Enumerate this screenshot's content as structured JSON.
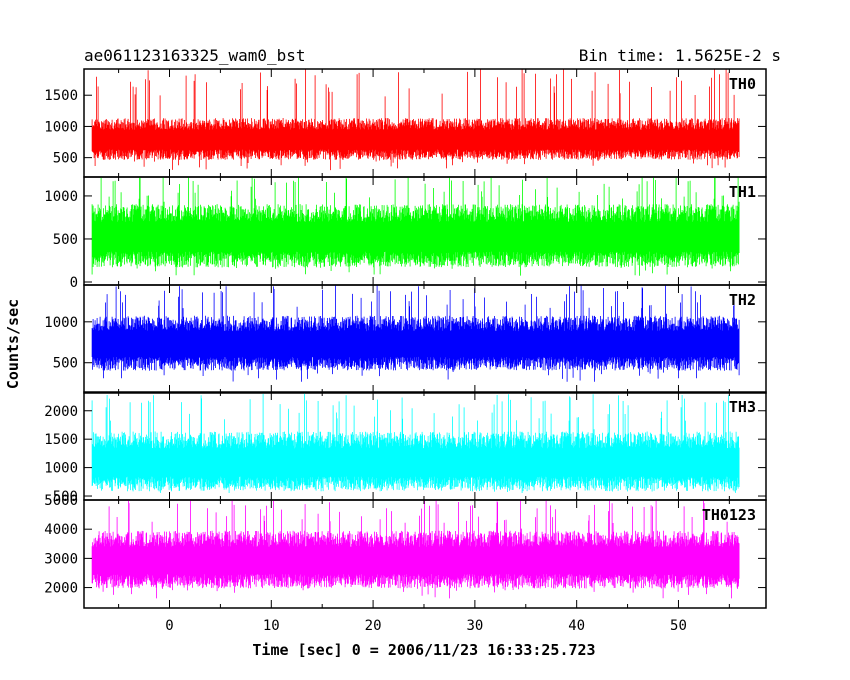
{
  "chart_data": {
    "type": "line",
    "title_left": "ae061123163325_wam0_bst",
    "title_right": "Bin time: 1.5625E-2 s",
    "xlabel": "Time [sec] 0 = 2006/11/23 16:33:25.723",
    "ylabel": "Counts/sec",
    "xlim": [
      -8.4,
      58.6
    ],
    "data_range": [
      -7.6,
      56
    ],
    "x_ticks": [
      0,
      10,
      20,
      30,
      40,
      50
    ],
    "x_tick_labels": [
      "0",
      "10",
      "20",
      "30",
      "40",
      "50"
    ],
    "panels": [
      {
        "name": "TH0",
        "color": "#ff0000",
        "ylim": [
          190,
          1920
        ],
        "y_ticks": [
          500,
          1000,
          1500
        ],
        "y_tick_labels": [
          "500",
          "1000",
          "1500"
        ],
        "mean": 820,
        "noise": 210,
        "floor": 300,
        "spike_max": 1920
      },
      {
        "name": "TH1",
        "color": "#00ff00",
        "ylim": [
          -35,
          1220
        ],
        "y_ticks": [
          0,
          500,
          1000
        ],
        "y_tick_labels": [
          "0",
          "500",
          "1000"
        ],
        "mean": 560,
        "noise": 230,
        "floor": 60,
        "spike_max": 1220
      },
      {
        "name": "TH2",
        "color": "#0000ff",
        "ylim": [
          130,
          1450
        ],
        "y_ticks": [
          500,
          1000
        ],
        "y_tick_labels": [
          "500",
          "1000"
        ],
        "mean": 760,
        "noise": 210,
        "floor": 240,
        "spike_max": 1420
      },
      {
        "name": "TH3",
        "color": "#00ffff",
        "ylim": [
          430,
          2330
        ],
        "y_ticks": [
          500,
          1000,
          1500,
          2000
        ],
        "y_tick_labels": [
          "500",
          "1000",
          "1500",
          "2000"
        ],
        "mean": 1140,
        "noise": 330,
        "floor": 520,
        "spike_max": 2250
      },
      {
        "name": "TH0123",
        "color": "#ff00ff",
        "ylim": [
          1300,
          5000
        ],
        "y_ticks": [
          2000,
          3000,
          4000,
          5000
        ],
        "y_tick_labels": [
          "2000",
          "3000",
          "4000",
          "5000"
        ],
        "mean": 3020,
        "noise": 620,
        "floor": 1550,
        "spike_max": 4950
      }
    ]
  }
}
